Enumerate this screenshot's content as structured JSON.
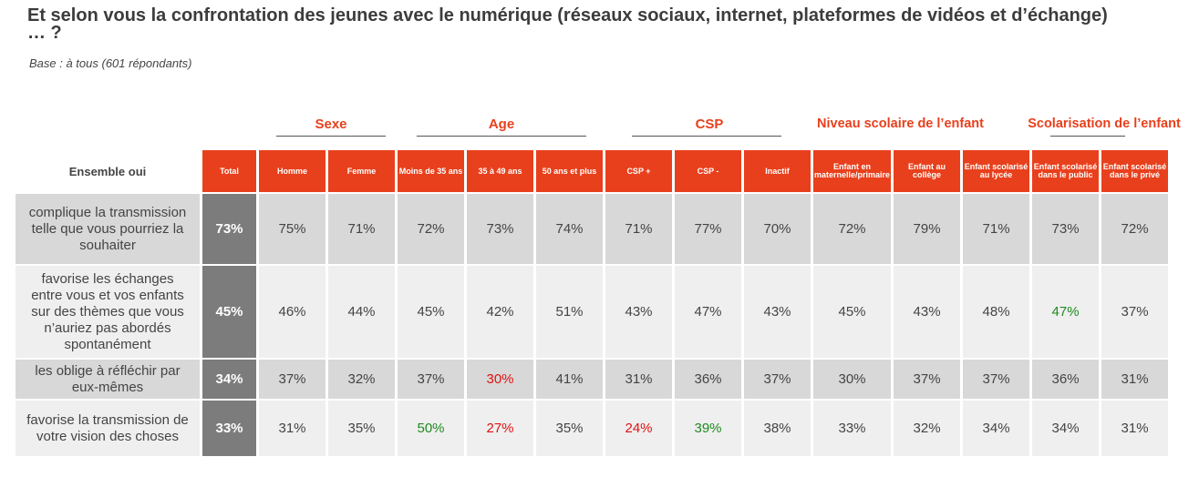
{
  "title": "Et selon vous la confrontation des jeunes avec le numérique (réseaux sociaux, internet, plateformes de vidéos et d’échange) … ?",
  "subtitle": "Base : à tous (601 répondants)",
  "colors": {
    "accent": "#e8401c",
    "total_bg": "#7c7c7c",
    "row_dark": "#d8d8d8",
    "row_light": "#efefef",
    "significant_low": "#e31010",
    "significant_high": "#1f8a1f"
  },
  "chart_data": {
    "type": "table",
    "row_header": "Ensemble oui",
    "groups": [
      {
        "label": "Sexe",
        "columns": [
          "Homme",
          "Femme"
        ]
      },
      {
        "label": "Age",
        "columns": [
          "Moins de 35 ans",
          "35 à 49 ans",
          "50 ans et plus"
        ]
      },
      {
        "label": "CSP",
        "columns": [
          "CSP +",
          "CSP -",
          "Inactif"
        ]
      },
      {
        "label": "Niveau scolaire de l’enfant",
        "columns": [
          "Enfant en maternelle/primaire",
          "Enfant au collège",
          "Enfant scolarisé au lycée"
        ]
      },
      {
        "label": "Scolarisation de l’enfant",
        "columns": [
          "Enfant scolarisé dans le public",
          "Enfant scolarisé dans le privé"
        ]
      }
    ],
    "columns": [
      "Total",
      "Homme",
      "Femme",
      "Moins de 35 ans",
      "35 à 49 ans",
      "50 ans et plus",
      "CSP +",
      "CSP -",
      "Inactif",
      "Enfant en maternelle/primaire",
      "Enfant au collège",
      "Enfant scolarisé au lycée",
      "Enfant scolarisé dans le public",
      "Enfant scolarisé dans le privé"
    ],
    "rows": [
      {
        "label": "complique la transmission telle que vous pourriez la souhaiter",
        "values": [
          "73%",
          "75%",
          "71%",
          "72%",
          "73%",
          "74%",
          "71%",
          "77%",
          "70%",
          "72%",
          "79%",
          "71%",
          "73%",
          "72%"
        ],
        "highlights": [
          "",
          "",
          "",
          "",
          "",
          "",
          "",
          "",
          "",
          "",
          "",
          "",
          "",
          ""
        ]
      },
      {
        "label": "favorise les échanges entre vous et vos enfants sur des thèmes que vous n’auriez pas abordés spontanément",
        "values": [
          "45%",
          "46%",
          "44%",
          "45%",
          "42%",
          "51%",
          "43%",
          "47%",
          "43%",
          "45%",
          "43%",
          "48%",
          "47%",
          "37%"
        ],
        "highlights": [
          "",
          "",
          "",
          "",
          "",
          "",
          "",
          "",
          "",
          "",
          "",
          "",
          "green",
          ""
        ]
      },
      {
        "label": "les oblige à réfléchir par eux-mêmes",
        "values": [
          "34%",
          "37%",
          "32%",
          "37%",
          "30%",
          "41%",
          "31%",
          "36%",
          "37%",
          "30%",
          "37%",
          "37%",
          "36%",
          "31%"
        ],
        "highlights": [
          "",
          "",
          "",
          "",
          "red",
          "",
          "",
          "",
          "",
          "",
          "",
          "",
          "",
          ""
        ]
      },
      {
        "label": "favorise la transmission de votre vision des choses",
        "values": [
          "33%",
          "31%",
          "35%",
          "50%",
          "27%",
          "35%",
          "24%",
          "39%",
          "38%",
          "33%",
          "32%",
          "34%",
          "34%",
          "31%"
        ],
        "highlights": [
          "",
          "",
          "",
          "green",
          "red",
          "",
          "red",
          "green",
          "",
          "",
          "",
          "",
          "",
          ""
        ]
      }
    ]
  }
}
